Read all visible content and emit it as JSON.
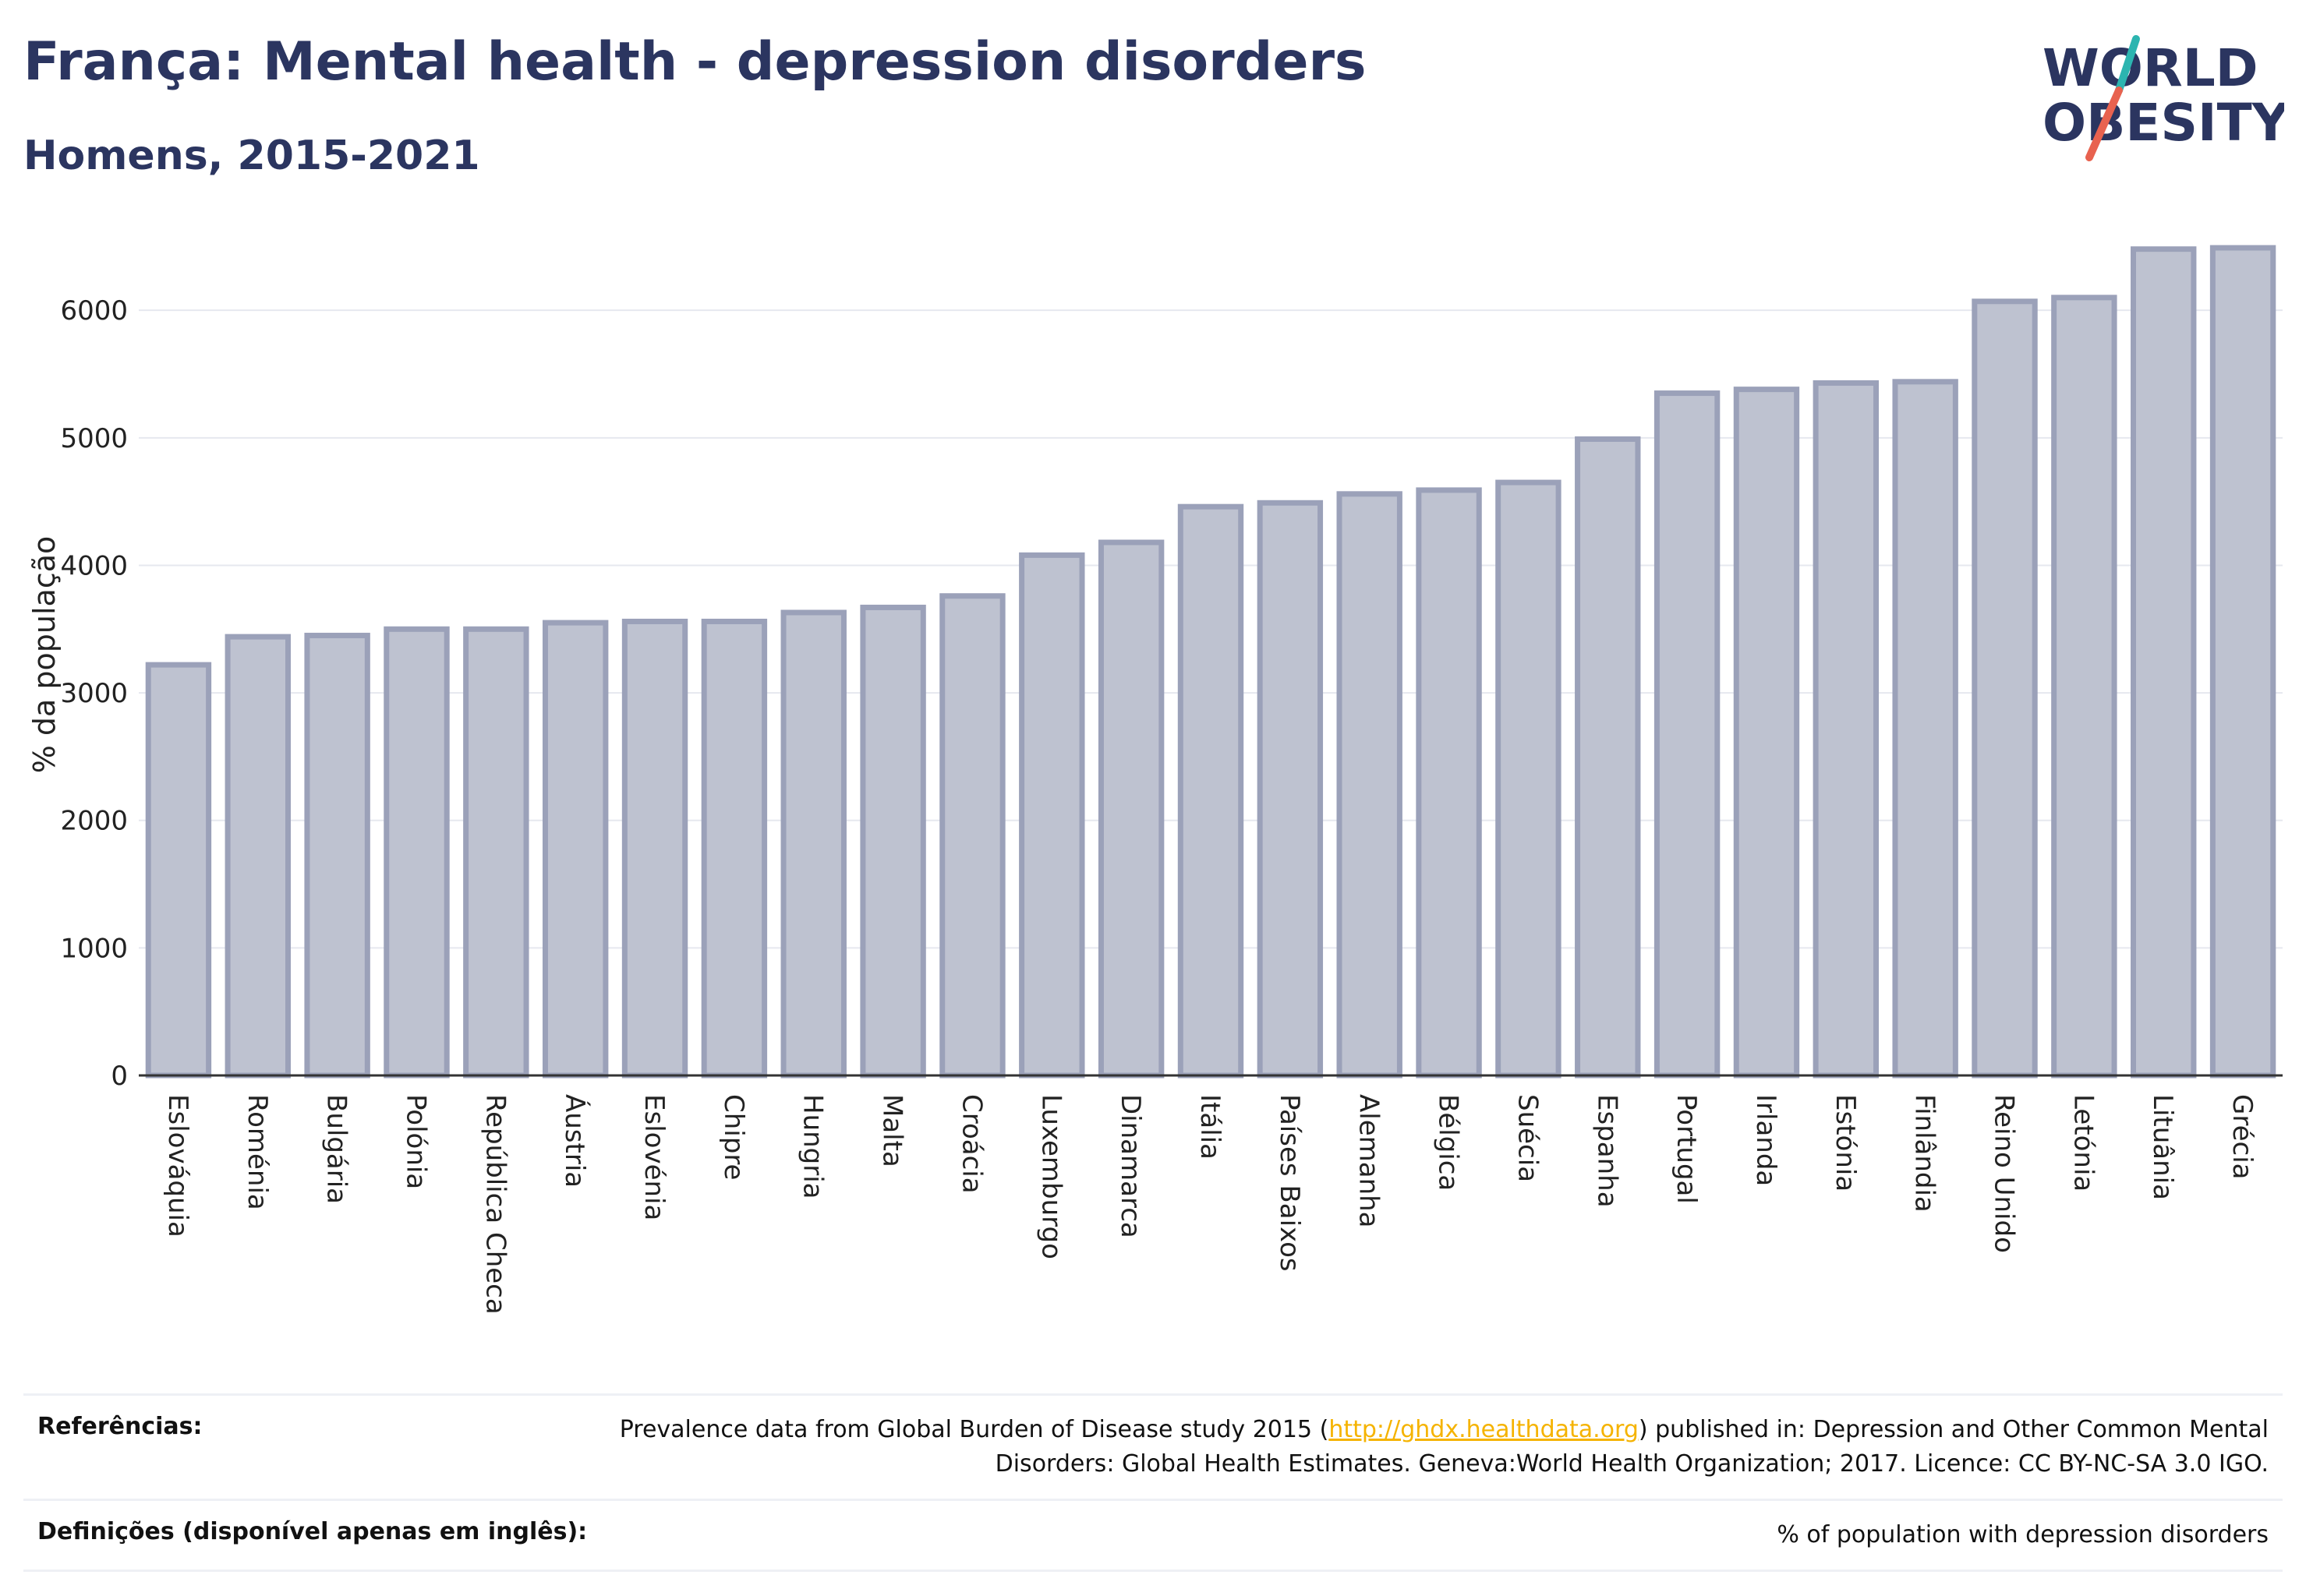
{
  "header": {
    "title": "França: Mental health - depression disorders",
    "subtitle": "Homens, 2015-2021"
  },
  "logo": {
    "line1": "WORLD",
    "line2": "OBESITY",
    "colors": {
      "text": "#2b3560",
      "slash_teal": "#2cb5b0",
      "slash_red": "#e8624f"
    }
  },
  "chart_data": {
    "type": "bar",
    "ylabel": "% da população",
    "xlabel": "",
    "ylim": [
      0,
      6600
    ],
    "yticks": [
      0,
      1000,
      2000,
      3000,
      4000,
      5000,
      6000
    ],
    "grid": true,
    "bar_color": "#bec2d0",
    "bar_edge_color": "#9ba1b9",
    "categories": [
      "Eslováquia",
      "Roménia",
      "Bulgária",
      "Polónia",
      "República Checa",
      "Áustria",
      "Eslovénia",
      "Chipre",
      "Hungria",
      "Malta",
      "Croácia",
      "Luxemburgo",
      "Dinamarca",
      "Itália",
      "Países Baixos",
      "Alemanha",
      "Bélgica",
      "Suécia",
      "Espanha",
      "Portugal",
      "Irlanda",
      "Estónia",
      "Finlândia",
      "Reino Unido",
      "Letónia",
      "Lituânia",
      "Grécia"
    ],
    "values": [
      3220,
      3440,
      3450,
      3500,
      3500,
      3550,
      3560,
      3560,
      3630,
      3670,
      3760,
      4080,
      4180,
      4460,
      4490,
      4560,
      4590,
      4650,
      4990,
      5350,
      5380,
      5430,
      5440,
      6070,
      6100,
      6480,
      6490
    ]
  },
  "footer": {
    "references_label": "Referências:",
    "references_text_before": "Prevalence data from Global Burden of Disease study 2015 (",
    "references_link": "http://ghdx.healthdata.org",
    "references_text_after": ") published in: Depression and Other Common Mental Disorders: Global Health Estimates. Geneva:World Health Organization; 2017. Licence: CC BY-NC-SA 3.0 IGO.",
    "definitions_label": "Definições (disponível apenas em inglês):",
    "definitions_text": "% of population with depression disorders"
  }
}
